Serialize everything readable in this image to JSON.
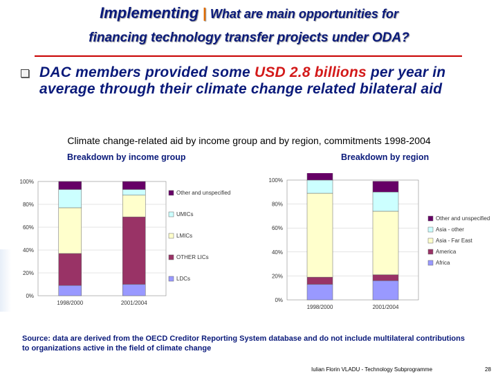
{
  "slide": {
    "title_main": "Implementing",
    "title_sep": " | ",
    "title_sub": "What are main opportunities for",
    "title_line2": "financing technology transfer projects under ODA?",
    "bullet_pre": "DAC members provided some ",
    "bullet_highlight": "USD 2.8 billions",
    "bullet_post": " per year in average through their climate change related bilateral aid",
    "figure_title": "Climate change-related aid by income group and by region, commitments 1998-2004",
    "left_subtitle": "Breakdown by income group",
    "right_subtitle": "Breakdown by region",
    "source": "Source: data are derived from the OECD Creditor Reporting System database and do not include multilateral contributions to organizations active in the field of climate change",
    "footer": "Iulian Florin VLADU - Technology Subprogramme",
    "page_number": "28"
  },
  "colors": {
    "title": "#0a1a7a",
    "accent": "#d31a1a",
    "rule": "#c80000"
  },
  "chart_data": [
    {
      "type": "bar",
      "stacked": true,
      "title": "Breakdown by income group",
      "categories": [
        "1998/2000",
        "2001/2004"
      ],
      "yticks": [
        "0%",
        "20%",
        "40%",
        "60%",
        "80%",
        "100%"
      ],
      "ylim": [
        0,
        100
      ],
      "series": [
        {
          "name": "LDCs",
          "color": "#9999ff",
          "values": [
            9,
            10
          ]
        },
        {
          "name": "OTHER LICs",
          "color": "#993366",
          "values": [
            28,
            59
          ]
        },
        {
          "name": "LMICs",
          "color": "#ffffcc",
          "values": [
            40,
            19
          ]
        },
        {
          "name": "UMICs",
          "color": "#ccffff",
          "values": [
            16,
            5
          ]
        },
        {
          "name": "Other and unspecified",
          "color": "#660066",
          "values": [
            7,
            7
          ]
        }
      ],
      "legend_position": "right"
    },
    {
      "type": "bar",
      "stacked": true,
      "title": "Breakdown by region",
      "categories": [
        "1998/2000",
        "2001/2004"
      ],
      "yticks": [
        "0%",
        "20%",
        "40%",
        "60%",
        "80%",
        "100%"
      ],
      "ylim": [
        0,
        100
      ],
      "series": [
        {
          "name": "Africa",
          "color": "#9999ff",
          "values": [
            13,
            16
          ]
        },
        {
          "name": "America",
          "color": "#993366",
          "values": [
            6,
            5
          ]
        },
        {
          "name": "Asia - Far East",
          "color": "#ffffcc",
          "values": [
            70,
            53
          ]
        },
        {
          "name": "Asia - other",
          "color": "#ccffff",
          "values": [
            11,
            16
          ]
        },
        {
          "name": "Other and unspecified",
          "color": "#660066",
          "values": [
            9,
            9
          ]
        }
      ],
      "legend_position": "right"
    }
  ]
}
